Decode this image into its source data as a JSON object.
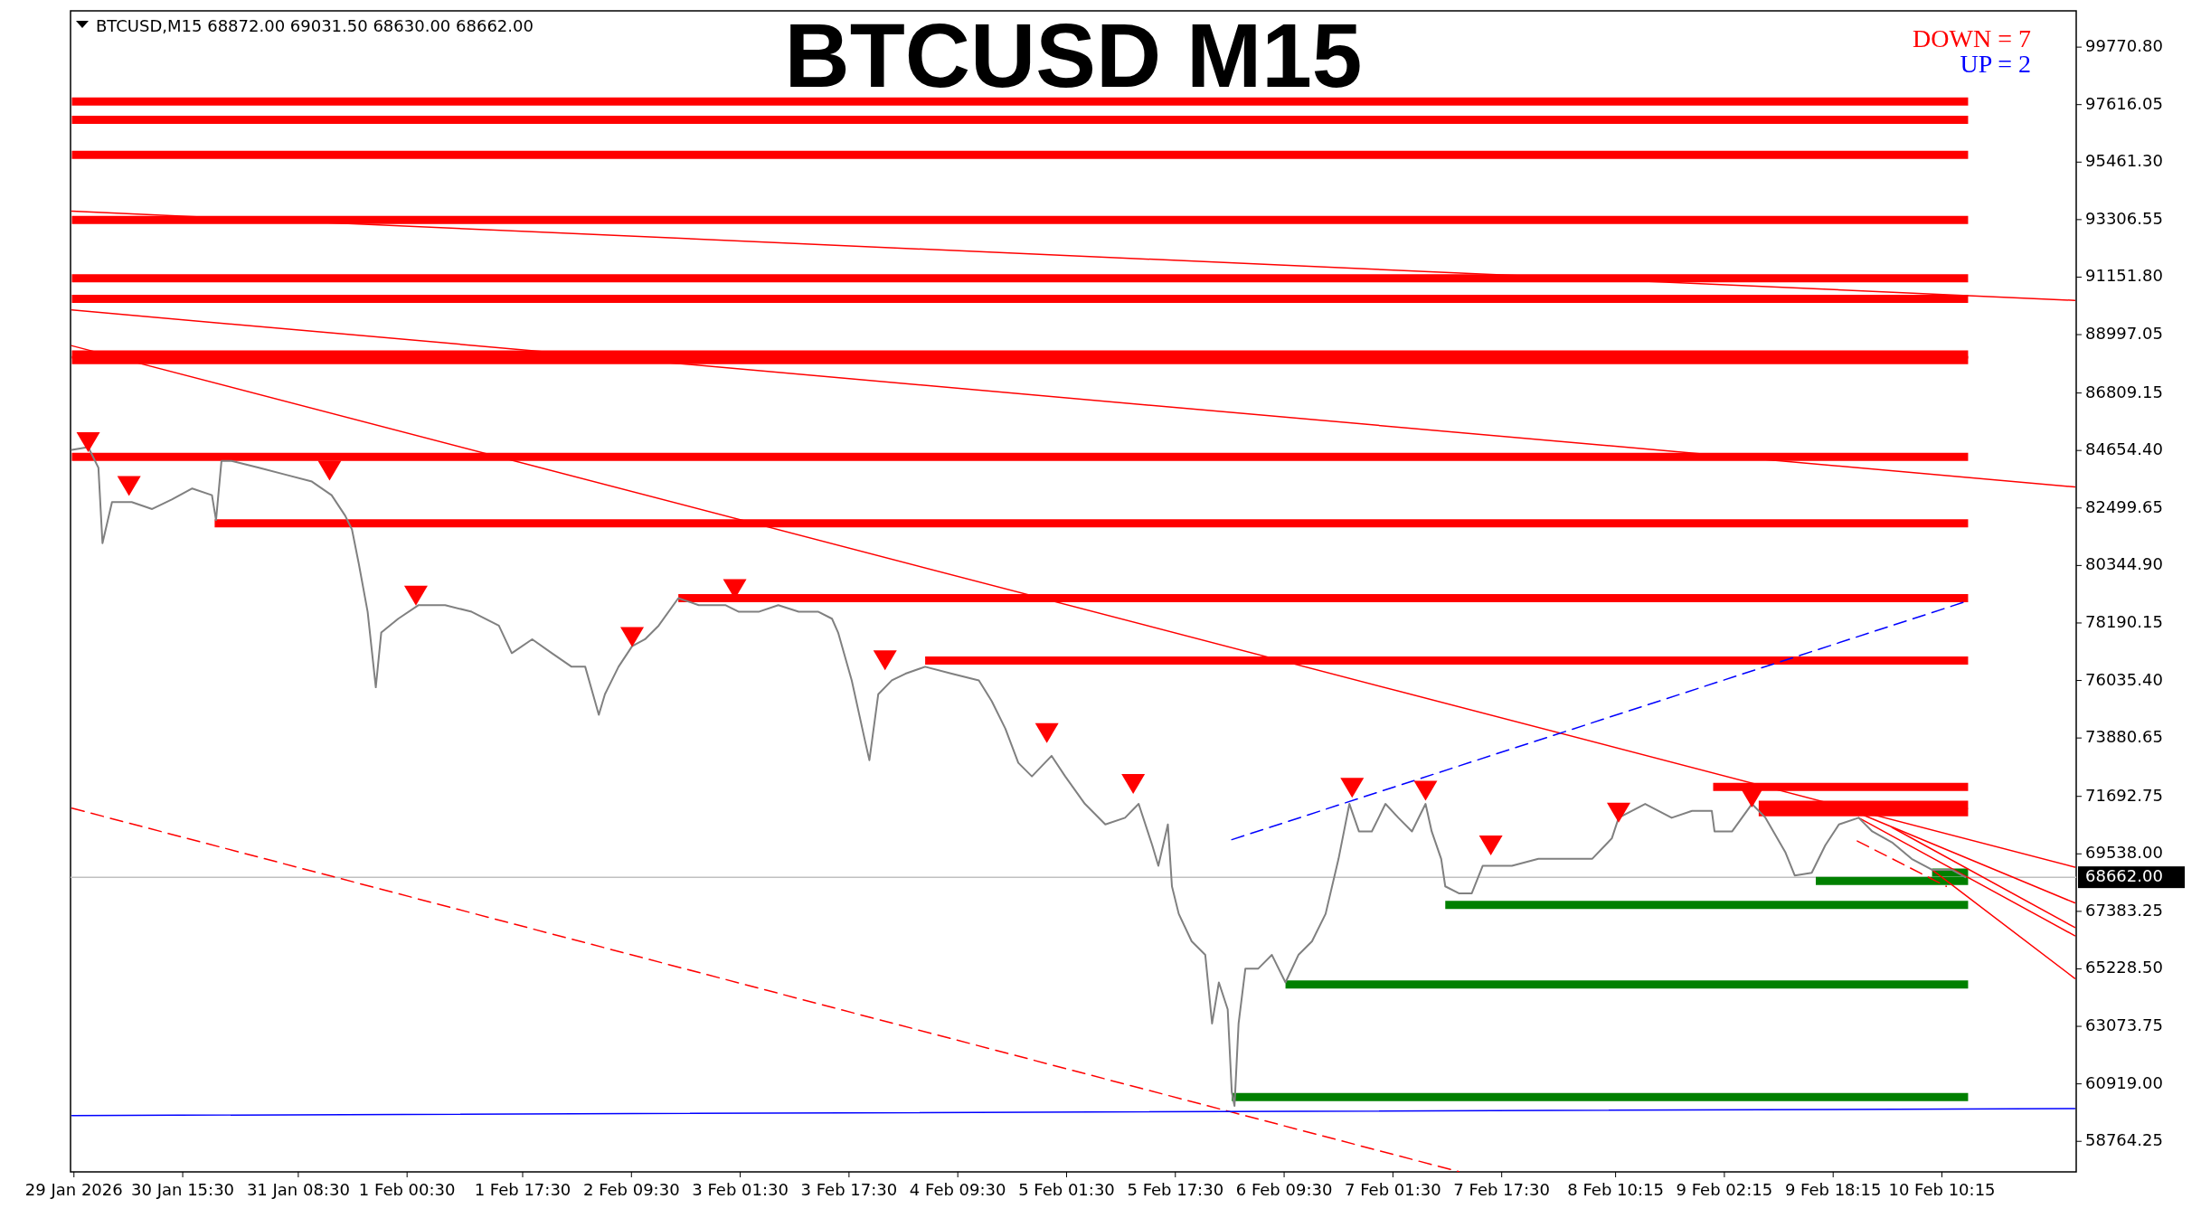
{
  "chart_data": {
    "type": "line",
    "title": "BTCUSD M15",
    "annotations": [
      "BTCUSD,M15  68872.00 69031.50 68630.00 68662.00",
      "DOWN = 7",
      "UP = 2"
    ],
    "xlim": [
      "2026-01-29T23:00",
      "2026-02-11T06:00"
    ],
    "ylim": [
      57620,
      101130
    ],
    "xticks": [
      {
        "value": "2026-01-29T23:30",
        "label": "29 Jan 2026"
      },
      {
        "value": "2026-01-30T15:30",
        "label": "30 Jan 15:30"
      },
      {
        "value": "2026-01-31T08:30",
        "label": "31 Jan 08:30"
      },
      {
        "value": "2026-02-01T00:30",
        "label": "1 Feb 00:30"
      },
      {
        "value": "2026-02-01T17:30",
        "label": "1 Feb 17:30"
      },
      {
        "value": "2026-02-02T09:30",
        "label": "2 Feb 09:30"
      },
      {
        "value": "2026-02-03T01:30",
        "label": "3 Feb 01:30"
      },
      {
        "value": "2026-02-03T17:30",
        "label": "3 Feb 17:30"
      },
      {
        "value": "2026-02-04T09:30",
        "label": "4 Feb 09:30"
      },
      {
        "value": "2026-02-05T01:30",
        "label": "5 Feb 01:30"
      },
      {
        "value": "2026-02-05T17:30",
        "label": "5 Feb 17:30"
      },
      {
        "value": "2026-02-06T09:30",
        "label": "6 Feb 09:30"
      },
      {
        "value": "2026-02-07T01:30",
        "label": "7 Feb 01:30"
      },
      {
        "value": "2026-02-07T17:30",
        "label": "7 Feb 17:30"
      },
      {
        "value": "2026-02-08T10:15",
        "label": "8 Feb 10:15"
      },
      {
        "value": "2026-02-09T02:15",
        "label": "9 Feb 02:15"
      },
      {
        "value": "2026-02-09T18:15",
        "label": "9 Feb 18:15"
      },
      {
        "value": "2026-02-10T10:15",
        "label": "10 Feb 10:15"
      }
    ],
    "yticks": [
      {
        "value": 99770.8,
        "label": "99770.80"
      },
      {
        "value": 97616.05,
        "label": "97616.05"
      },
      {
        "value": 95461.3,
        "label": "95461.30"
      },
      {
        "value": 93306.55,
        "label": "93306.55"
      },
      {
        "value": 91151.8,
        "label": "91151.80"
      },
      {
        "value": 88997.05,
        "label": "88997.05"
      },
      {
        "value": 86809.15,
        "label": "86809.15"
      },
      {
        "value": 84654.4,
        "label": "84654.40"
      },
      {
        "value": 82499.65,
        "label": "82499.65"
      },
      {
        "value": 80344.9,
        "label": "80344.90"
      },
      {
        "value": 78190.15,
        "label": "78190.15"
      },
      {
        "value": 76035.4,
        "label": "76035.40"
      },
      {
        "value": 73880.65,
        "label": "73880.65"
      },
      {
        "value": 71692.75,
        "label": "71692.75"
      },
      {
        "value": 69538,
        "label": "69538.00"
      },
      {
        "value": 67383.25,
        "label": "67383.25"
      },
      {
        "value": 65228.5,
        "label": "65228.50"
      },
      {
        "value": 63073.75,
        "label": "63073.75"
      },
      {
        "value": 60919,
        "label": "60919.00"
      },
      {
        "value": 58764.25,
        "label": "58764.25"
      }
    ],
    "ref_lines": [
      {
        "axis": "y",
        "value": 68662,
        "label": "68662.00",
        "color": "#c0c0c0"
      }
    ],
    "series": [
      {
        "type": "line",
        "color": "#ff0000",
        "x": [
          "2026-01-29T23:12",
          "2026-02-10T14:06"
        ],
        "values": [
          97735,
          97735
        ]
      },
      {
        "type": "line",
        "color": "#ff0000",
        "x": [
          "2026-01-29T23:12",
          "2026-02-10T14:06"
        ],
        "values": [
          97045,
          97045
        ]
      },
      {
        "type": "line",
        "color": "#ff0000",
        "x": [
          "2026-01-29T23:12",
          "2026-02-10T14:06"
        ],
        "values": [
          95735,
          95735
        ]
      },
      {
        "type": "line",
        "color": "#ff0000",
        "x": [
          "2026-01-29T23:12",
          "2026-02-10T14:06"
        ],
        "values": [
          93290,
          93290
        ]
      },
      {
        "type": "line",
        "color": "#ff0000",
        "x": [
          "2026-01-29T23:12",
          "2026-02-10T14:06"
        ],
        "values": [
          91105,
          91105
        ]
      },
      {
        "type": "line",
        "color": "#ff0000",
        "x": [
          "2026-01-29T23:12",
          "2026-02-10T14:06"
        ],
        "values": [
          90335,
          90335
        ]
      },
      {
        "type": "line",
        "color": "#ff0000",
        "x": [
          "2026-01-29T23:12",
          "2026-02-10T14:06"
        ],
        "values": [
          88250,
          88250
        ]
      },
      {
        "type": "line",
        "color": "#ff0000",
        "x": [
          "2026-01-29T23:12",
          "2026-02-10T14:06"
        ],
        "values": [
          88045,
          88045
        ]
      },
      {
        "type": "line",
        "color": "#ff0000",
        "x": [
          "2026-01-29T23:12",
          "2026-02-10T14:06"
        ],
        "values": [
          84415,
          84415
        ]
      },
      {
        "type": "line",
        "color": "#ff0000",
        "x": [
          "2026-01-30T20:12",
          "2026-02-10T14:06"
        ],
        "values": [
          81925,
          81925
        ]
      },
      {
        "type": "line",
        "color": "#ff0000",
        "x": [
          "2026-02-02T16:24",
          "2026-02-10T14:06"
        ],
        "values": [
          79125,
          79125
        ]
      },
      {
        "type": "line",
        "color": "#ff0000",
        "x": [
          "2026-02-04T04:42",
          "2026-02-10T14:06"
        ],
        "values": [
          76780,
          76780
        ]
      },
      {
        "type": "line",
        "color": "#ff0000",
        "x": [
          "2026-02-09T00:36",
          "2026-02-10T14:06"
        ],
        "values": [
          72050,
          72050
        ]
      },
      {
        "type": "line",
        "color": "#ff0000",
        "x": [
          "2026-02-09T07:18",
          "2026-02-10T14:06"
        ],
        "values": [
          71380,
          71380
        ]
      },
      {
        "type": "line",
        "color": "#ff0000",
        "x": [
          "2026-02-09T07:18",
          "2026-02-10T14:06"
        ],
        "values": [
          71100,
          71100
        ]
      },
      {
        "type": "line",
        "color": "#008000",
        "x": [
          "2026-02-10T08:48",
          "2026-02-10T14:06"
        ],
        "values": [
          68835,
          68835
        ]
      },
      {
        "type": "line",
        "color": "#008000",
        "x": [
          "2026-02-09T15:42",
          "2026-02-10T14:06"
        ],
        "values": [
          68525,
          68525
        ]
      },
      {
        "type": "line",
        "color": "#008000",
        "x": [
          "2026-02-07T09:12",
          "2026-02-10T14:06"
        ],
        "values": [
          67625,
          67625
        ]
      },
      {
        "type": "line",
        "color": "#008000",
        "x": [
          "2026-02-06T09:42",
          "2026-02-10T14:06"
        ],
        "values": [
          64640,
          64640
        ]
      },
      {
        "type": "line",
        "color": "#008000",
        "x": [
          "2026-02-06T01:48",
          "2026-02-10T14:06"
        ],
        "values": [
          60425,
          60425
        ]
      },
      {
        "type": "line",
        "color": "#ff0000",
        "x": [
          "2026-01-29T23:12",
          "2026-02-11T05:48"
        ],
        "values": [
          93620,
          90280
        ]
      },
      {
        "type": "line",
        "color": "#ff0000",
        "x": [
          "2026-01-29T23:12",
          "2026-02-11T05:48"
        ],
        "values": [
          89920,
          83290
        ]
      },
      {
        "type": "line",
        "color": "#ff0000",
        "x": [
          "2026-01-29T23:12",
          "2026-02-11T05:48"
        ],
        "values": [
          88580,
          69040
        ]
      },
      {
        "type": "line",
        "color": "#ff0000",
        "x": [
          "2026-02-09T22:48",
          "2026-02-11T05:48"
        ],
        "values": [
          70980,
          67700
        ]
      },
      {
        "type": "line",
        "color": "#ff0000",
        "x": [
          "2026-02-10T02:54",
          "2026-02-11T05:48"
        ],
        "values": [
          70530,
          66780
        ]
      },
      {
        "type": "line",
        "color": "#ff0000",
        "x": [
          "2026-02-09T22:00",
          "2026-02-11T05:48"
        ],
        "values": [
          70890,
          66470
        ]
      },
      {
        "type": "line",
        "color": "#ff0000",
        "x": [
          "2026-02-10T08:48",
          "2026-02-11T05:48"
        ],
        "values": [
          68940,
          64870
        ]
      },
      {
        "type": "line",
        "color": "#ff0000",
        "line_style": "dashed",
        "x": [
          "2026-02-09T21:48",
          "2026-02-10T10:54"
        ],
        "values": [
          70020,
          68320
        ]
      },
      {
        "type": "line",
        "color": "#ff0000",
        "line_style": "dashed",
        "x": [
          "2026-01-29T23:12",
          "2026-02-07T11:12"
        ],
        "values": [
          71250,
          57630
        ]
      },
      {
        "type": "line",
        "color": "#0000ff",
        "line_style": "dashed",
        "x": [
          "2026-02-06T01:48",
          "2026-02-10T14:06"
        ],
        "values": [
          70070,
          79020
        ]
      },
      {
        "type": "line",
        "color": "#0000ff",
        "x": [
          "2026-01-29T23:12",
          "2026-02-11T05:48"
        ],
        "values": [
          59730,
          59990
        ]
      },
      {
        "color": "#808080",
        "x": [
          "2026-01-29T23:12",
          "2026-01-30T01:36",
          "2026-01-30T03:06",
          "2026-01-30T03:42",
          "2026-01-30T05:06",
          "2026-01-30T08:00",
          "2026-01-30T11:00",
          "2026-01-30T13:54",
          "2026-01-30T16:54",
          "2026-01-30T19:48",
          "2026-01-30T20:24",
          "2026-01-30T21:12",
          "2026-01-30T22:42",
          "2026-01-31T02:42",
          "2026-01-31T06:36",
          "2026-01-31T10:30",
          "2026-01-31T13:24",
          "2026-01-31T15:24",
          "2026-01-31T16:24",
          "2026-01-31T17:24",
          "2026-01-31T18:42",
          "2026-01-31T19:54",
          "2026-01-31T20:42",
          "2026-01-31T23:12",
          "2026-02-01T02:12",
          "2026-02-01T06:06",
          "2026-02-01T10:00",
          "2026-02-01T14:00",
          "2026-02-01T15:54",
          "2026-02-01T18:54",
          "2026-02-01T21:48",
          "2026-02-02T00:42",
          "2026-02-02T02:42",
          "2026-02-02T04:42",
          "2026-02-02T05:36",
          "2026-02-02T07:36",
          "2026-02-02T09:36",
          "2026-02-02T11:30",
          "2026-02-02T13:30",
          "2026-02-02T16:24",
          "2026-02-02T19:24",
          "2026-02-02T23:18",
          "2026-02-03T01:18",
          "2026-02-03T04:12",
          "2026-02-03T07:06",
          "2026-02-03T10:06",
          "2026-02-03T13:00",
          "2026-02-03T15:00",
          "2026-02-03T15:54",
          "2026-02-03T17:54",
          "2026-02-03T19:54",
          "2026-02-03T20:30",
          "2026-02-03T21:48",
          "2026-02-03T23:48",
          "2026-02-04T01:48",
          "2026-02-04T04:42",
          "2026-02-04T08:36",
          "2026-02-04T12:36",
          "2026-02-04T14:30",
          "2026-02-04T16:30",
          "2026-02-04T18:24",
          "2026-02-04T20:24",
          "2026-02-04T23:18",
          "2026-02-05T01:18",
          "2026-02-05T04:12",
          "2026-02-05T07:12",
          "2026-02-05T10:06",
          "2026-02-05T12:06",
          "2026-02-05T14:06",
          "2026-02-05T15:00",
          "2026-02-05T16:24",
          "2026-02-05T17:00",
          "2026-02-05T18:00",
          "2026-02-05T19:54",
          "2026-02-05T21:54",
          "2026-02-05T22:54",
          "2026-02-05T23:54",
          "2026-02-06T01:12",
          "2026-02-06T01:48",
          "2026-02-06T02:12",
          "2026-02-06T02:48",
          "2026-02-06T03:48",
          "2026-02-06T05:42",
          "2026-02-06T07:42",
          "2026-02-06T09:42",
          "2026-02-06T11:36",
          "2026-02-06T13:36",
          "2026-02-06T15:36",
          "2026-02-06T17:30",
          "2026-02-06T19:06",
          "2026-02-06T20:30",
          "2026-02-06T22:24",
          "2026-02-07T00:24",
          "2026-02-07T02:18",
          "2026-02-07T04:18",
          "2026-02-07T06:18",
          "2026-02-07T07:12",
          "2026-02-07T08:36",
          "2026-02-07T09:12",
          "2026-02-07T11:12",
          "2026-02-07T13:06",
          "2026-02-07T14:42",
          "2026-02-07T17:00",
          "2026-02-07T19:00",
          "2026-02-07T22:54",
          "2026-02-08T02:54",
          "2026-02-08T06:48",
          "2026-02-08T09:42",
          "2026-02-08T10:42",
          "2026-02-08T14:36",
          "2026-02-08T18:30",
          "2026-02-08T21:30",
          "2026-02-09T00:24",
          "2026-02-09T00:48",
          "2026-02-09T03:24",
          "2026-02-09T06:18",
          "2026-02-09T08:18",
          "2026-02-09T11:12",
          "2026-02-09T12:36",
          "2026-02-09T15:06",
          "2026-02-09T17:06",
          "2026-02-09T19:06",
          "2026-02-09T22:00",
          "2026-02-10T00:00",
          "2026-02-10T02:54",
          "2026-02-10T05:48",
          "2026-02-10T08:48",
          "2026-02-10T11:42",
          "2026-02-10T13:42"
        ],
        "values": [
          84680,
          84780,
          84010,
          81180,
          82720,
          82720,
          82460,
          82820,
          83230,
          82980,
          82050,
          84260,
          84260,
          84010,
          83750,
          83490,
          82980,
          82210,
          81690,
          80410,
          78610,
          75780,
          77830,
          78350,
          78860,
          78860,
          78610,
          78090,
          77060,
          77580,
          77060,
          76550,
          76550,
          74750,
          75520,
          76550,
          77320,
          77580,
          78090,
          79120,
          78860,
          78860,
          78610,
          78610,
          78860,
          78610,
          78610,
          78350,
          77830,
          76040,
          73720,
          73050,
          75520,
          76040,
          76290,
          76550,
          76290,
          76040,
          75260,
          74230,
          72950,
          72440,
          73210,
          72440,
          71410,
          70640,
          70890,
          71410,
          69860,
          69090,
          70640,
          68320,
          67290,
          66260,
          65750,
          63180,
          64720,
          63710,
          60610,
          60090,
          63180,
          65240,
          65240,
          65750,
          64720,
          65750,
          66260,
          67290,
          69350,
          71410,
          70380,
          70380,
          71410,
          70890,
          70380,
          71410,
          70380,
          69350,
          68320,
          68060,
          68060,
          69090,
          69090,
          69090,
          69350,
          69350,
          69350,
          70120,
          70890,
          71410,
          70890,
          71150,
          71150,
          70380,
          70380,
          71410,
          70890,
          69610,
          68730,
          68830,
          69860,
          70640,
          70890,
          70380,
          69970,
          69350,
          68940,
          68940,
          68662
        ]
      },
      {
        "type": "scatter",
        "color": "#ff0000",
        "marker": "triangle",
        "x": [
          "2026-01-30T01:36",
          "2026-01-30T07:36",
          "2026-01-31T13:06",
          "2026-02-01T01:48",
          "2026-02-02T09:36",
          "2026-02-03T00:42",
          "2026-02-03T22:48",
          "2026-02-04T22:36",
          "2026-02-05T11:18",
          "2026-02-06T19:30",
          "2026-02-07T06:18",
          "2026-02-07T15:54",
          "2026-02-08T10:42",
          "2026-02-09T06:18"
        ],
        "values": [
          84970,
          83320,
          83900,
          79210,
          77660,
          79460,
          76790,
          74060,
          72160,
          72010,
          71900,
          69850,
          71080,
          71650
        ]
      }
    ]
  }
}
